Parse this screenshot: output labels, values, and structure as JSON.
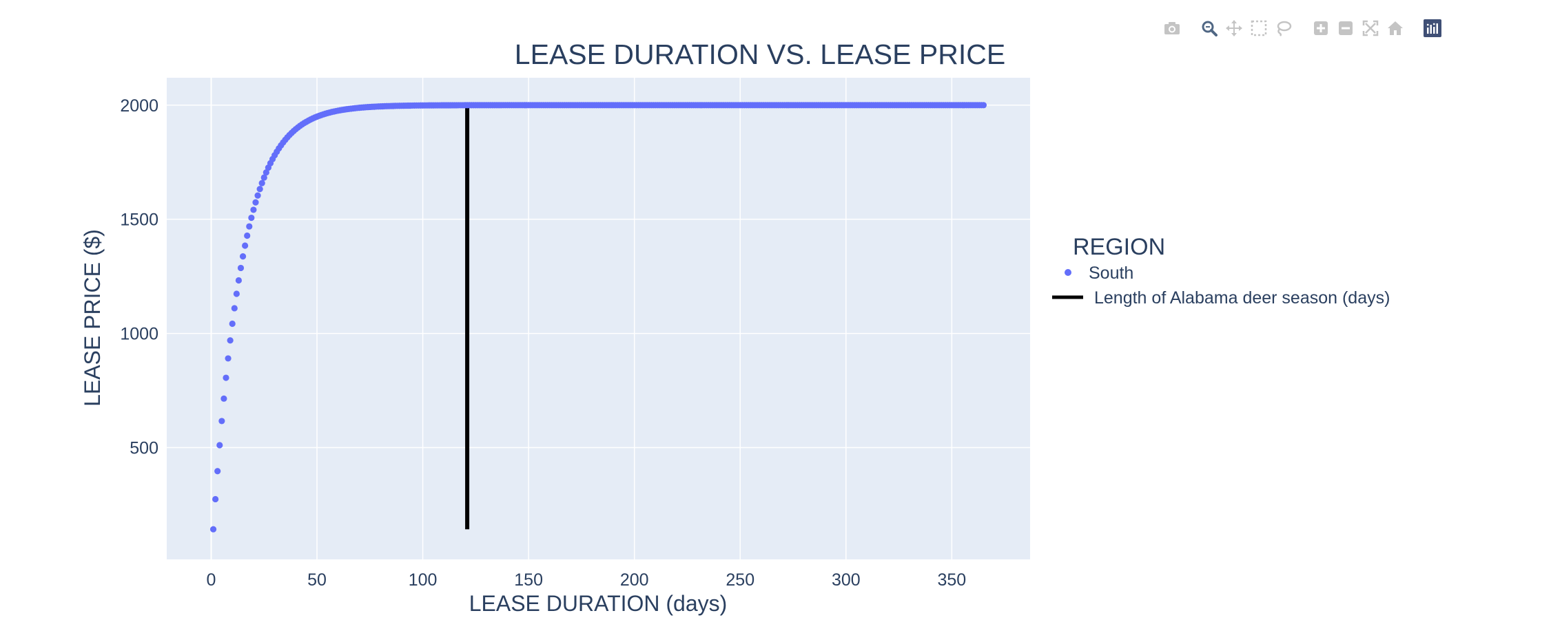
{
  "toolbar": {
    "buttons": [
      {
        "name": "camera-icon",
        "title": "Download plot as a png"
      },
      {
        "name": "zoom-icon",
        "title": "Zoom"
      },
      {
        "name": "pan-icon",
        "title": "Pan"
      },
      {
        "name": "box-select-icon",
        "title": "Box Select"
      },
      {
        "name": "lasso-select-icon",
        "title": "Lasso Select"
      },
      {
        "name": "zoom-in-icon",
        "title": "Zoom in"
      },
      {
        "name": "zoom-out-icon",
        "title": "Zoom out"
      },
      {
        "name": "autoscale-icon",
        "title": "Autoscale"
      },
      {
        "name": "reset-axes-icon",
        "title": "Reset axes"
      },
      {
        "name": "plotly-logo-icon",
        "title": "Produced with Plotly"
      }
    ],
    "active": "zoom-icon"
  },
  "chart_data": {
    "type": "scatter",
    "title": "LEASE DURATION VS. LEASE PRICE",
    "xlabel": "LEASE DURATION (days)",
    "ylabel": "LEASE PRICE ($)",
    "xlim": [
      -21,
      387
    ],
    "ylim": [
      10,
      2120
    ],
    "x_ticks": [
      0,
      50,
      100,
      150,
      200,
      250,
      300,
      350
    ],
    "y_ticks": [
      500,
      1000,
      1500,
      2000
    ],
    "grid": true,
    "legend": {
      "title": "REGION",
      "placement": "right",
      "entries": [
        "South",
        "Length of Alabama deer season (days)"
      ]
    },
    "series": [
      {
        "name": "South",
        "mode": "markers",
        "color": "#636efa",
        "x_start": 1,
        "x_end": 365,
        "x_step": 1,
        "y_at_x_1": 142,
        "y_plateau": 2000
      },
      {
        "name": "Length of Alabama deer season (days)",
        "mode": "line",
        "color": "#000000",
        "x": [
          121,
          121
        ],
        "y": [
          142,
          2000
        ]
      }
    ]
  },
  "colors": {
    "plot_background": "#e5ecf6",
    "grid": "#ffffff",
    "text": "#2a3f5f",
    "marker": "#636efa",
    "line": "#000000",
    "modebar_icon": "#c4c4c4",
    "modebar_active": "#506784",
    "logo_bg": "#3f4f75"
  }
}
